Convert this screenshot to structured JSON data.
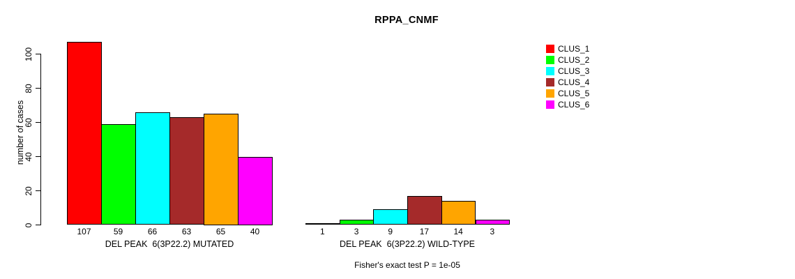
{
  "chart_data": {
    "type": "bar",
    "title": "RPPA_CNMF",
    "xlabel": "",
    "ylabel": "number of cases",
    "yticks": [
      0,
      20,
      40,
      60,
      80,
      100
    ],
    "ylim": [
      0,
      110
    ],
    "grid": false,
    "legend_position": "right",
    "legend": [
      {
        "label": "CLUS_1",
        "color": "#ff0000"
      },
      {
        "label": "CLUS_2",
        "color": "#00ff00"
      },
      {
        "label": "CLUS_3",
        "color": "#00ffff"
      },
      {
        "label": "CLUS_4",
        "color": "#a52a2a"
      },
      {
        "label": "CLUS_5",
        "color": "#ffa500"
      },
      {
        "label": "CLUS_6",
        "color": "#ff00ff"
      }
    ],
    "groups": [
      {
        "label": "DEL PEAK  6(3P22.2) MUTATED",
        "values": [
          107,
          59,
          66,
          63,
          65,
          40
        ]
      },
      {
        "label": "DEL PEAK  6(3P22.2) WILD-TYPE",
        "values": [
          1,
          3,
          9,
          17,
          14,
          3
        ]
      }
    ],
    "annotation": "Fisher's exact test P = 1e-05"
  }
}
